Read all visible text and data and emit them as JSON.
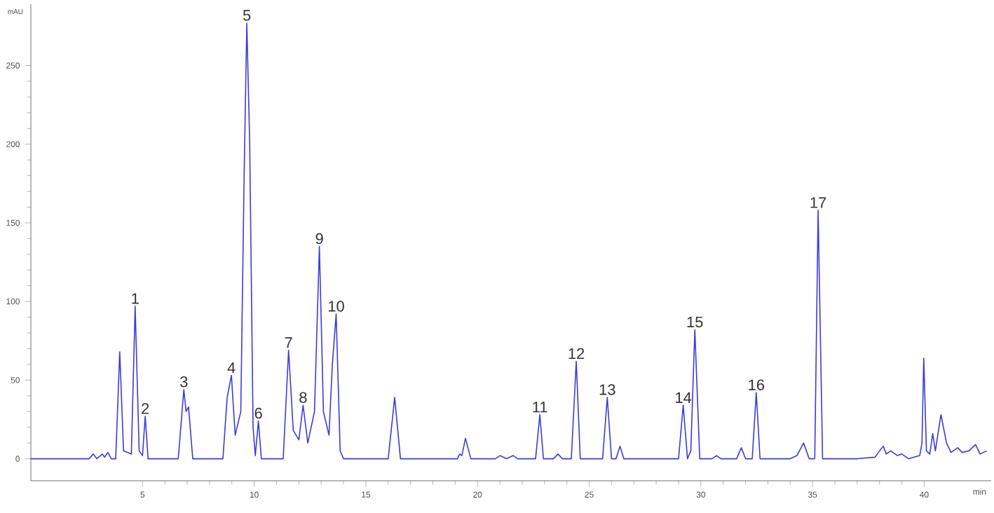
{
  "chart_data": {
    "type": "line",
    "xlabel": "min",
    "ylabel": "mAU",
    "xlim": [
      0,
      43
    ],
    "ylim": [
      -14,
      289
    ],
    "xticks": [
      5,
      10,
      15,
      20,
      25,
      30,
      35,
      40
    ],
    "yticks": [
      0,
      50,
      100,
      150,
      200,
      250
    ],
    "grid": false,
    "marker": "none",
    "line_style": "solid",
    "x": [
      0,
      2.6,
      2.8,
      2.95,
      3.2,
      3.3,
      3.45,
      3.6,
      3.8,
      3.98,
      4.15,
      4.5,
      4.67,
      4.85,
      5.0,
      5.12,
      5.25,
      6.6,
      6.85,
      6.95,
      7.06,
      7.25,
      8.6,
      8.79,
      8.98,
      9.15,
      9.4,
      9.55,
      9.67,
      9.8,
      9.95,
      10.05,
      10.19,
      10.32,
      11.3,
      11.54,
      11.75,
      12.0,
      12.19,
      12.4,
      12.7,
      12.92,
      13.1,
      13.35,
      13.5,
      13.67,
      13.85,
      14.0,
      16.0,
      16.29,
      16.55,
      19.1,
      19.2,
      19.3,
      19.46,
      19.7,
      20.8,
      21.0,
      21.3,
      21.6,
      21.8,
      22.6,
      22.79,
      22.95,
      23.4,
      23.6,
      23.8,
      24.2,
      24.42,
      24.6,
      25.6,
      25.81,
      26.0,
      26.2,
      26.38,
      26.55,
      29.0,
      29.21,
      29.4,
      29.55,
      29.73,
      29.95,
      30.5,
      30.7,
      30.9,
      31.6,
      31.81,
      32.0,
      32.3,
      32.48,
      32.65,
      34.0,
      34.3,
      34.6,
      34.85,
      35.1,
      35.25,
      35.45,
      37.0,
      37.8,
      38.0,
      38.17,
      38.3,
      38.5,
      38.8,
      39.0,
      39.3,
      39.8,
      39.9,
      39.98,
      40.1,
      40.25,
      40.38,
      40.5,
      40.75,
      41.0,
      41.2,
      41.5,
      41.7,
      42.0,
      42.3,
      42.5,
      42.8
    ],
    "series": [
      {
        "color": "#3b3bdb",
        "values": [
          0,
          0,
          3,
          0,
          3,
          1,
          4,
          0,
          0,
          68,
          5,
          3,
          97,
          5,
          2,
          27,
          0,
          0,
          44,
          30,
          33,
          0,
          0,
          39,
          53,
          15,
          30,
          180,
          277,
          200,
          20,
          2,
          24,
          0,
          0,
          69,
          18,
          12,
          34,
          10,
          30,
          135,
          30,
          15,
          60,
          92,
          5,
          0,
          0,
          39,
          0,
          0,
          3,
          2,
          13,
          0,
          0,
          2,
          0,
          2,
          0,
          0,
          28,
          0,
          0,
          3,
          0,
          0,
          62,
          0,
          0,
          39,
          0,
          0,
          8,
          0,
          0,
          34,
          0,
          5,
          82,
          0,
          0,
          2,
          0,
          0,
          7,
          0,
          0,
          42,
          0,
          0,
          2,
          10,
          0,
          0,
          158,
          0,
          0,
          1,
          5,
          8,
          3,
          5,
          2,
          3,
          0,
          2,
          10,
          64,
          5,
          3,
          16,
          5,
          28,
          10,
          4,
          7,
          4,
          5,
          9,
          3,
          5
        ]
      }
    ],
    "annotations": [
      {
        "text": "1",
        "x": 4.67,
        "y": 97
      },
      {
        "text": "2",
        "x": 5.12,
        "y": 27
      },
      {
        "text": "3",
        "x": 6.85,
        "y": 44
      },
      {
        "text": "4",
        "x": 8.98,
        "y": 53
      },
      {
        "text": "5",
        "x": 9.67,
        "y": 277
      },
      {
        "text": "6",
        "x": 10.19,
        "y": 24
      },
      {
        "text": "7",
        "x": 11.54,
        "y": 69
      },
      {
        "text": "8",
        "x": 12.19,
        "y": 34
      },
      {
        "text": "9",
        "x": 12.92,
        "y": 135
      },
      {
        "text": "10",
        "x": 13.67,
        "y": 92
      },
      {
        "text": "11",
        "x": 22.79,
        "y": 28
      },
      {
        "text": "12",
        "x": 24.42,
        "y": 62
      },
      {
        "text": "13",
        "x": 25.81,
        "y": 39
      },
      {
        "text": "14",
        "x": 29.21,
        "y": 34
      },
      {
        "text": "15",
        "x": 29.73,
        "y": 82
      },
      {
        "text": "16",
        "x": 32.48,
        "y": 42
      },
      {
        "text": "17",
        "x": 35.25,
        "y": 158
      }
    ]
  }
}
